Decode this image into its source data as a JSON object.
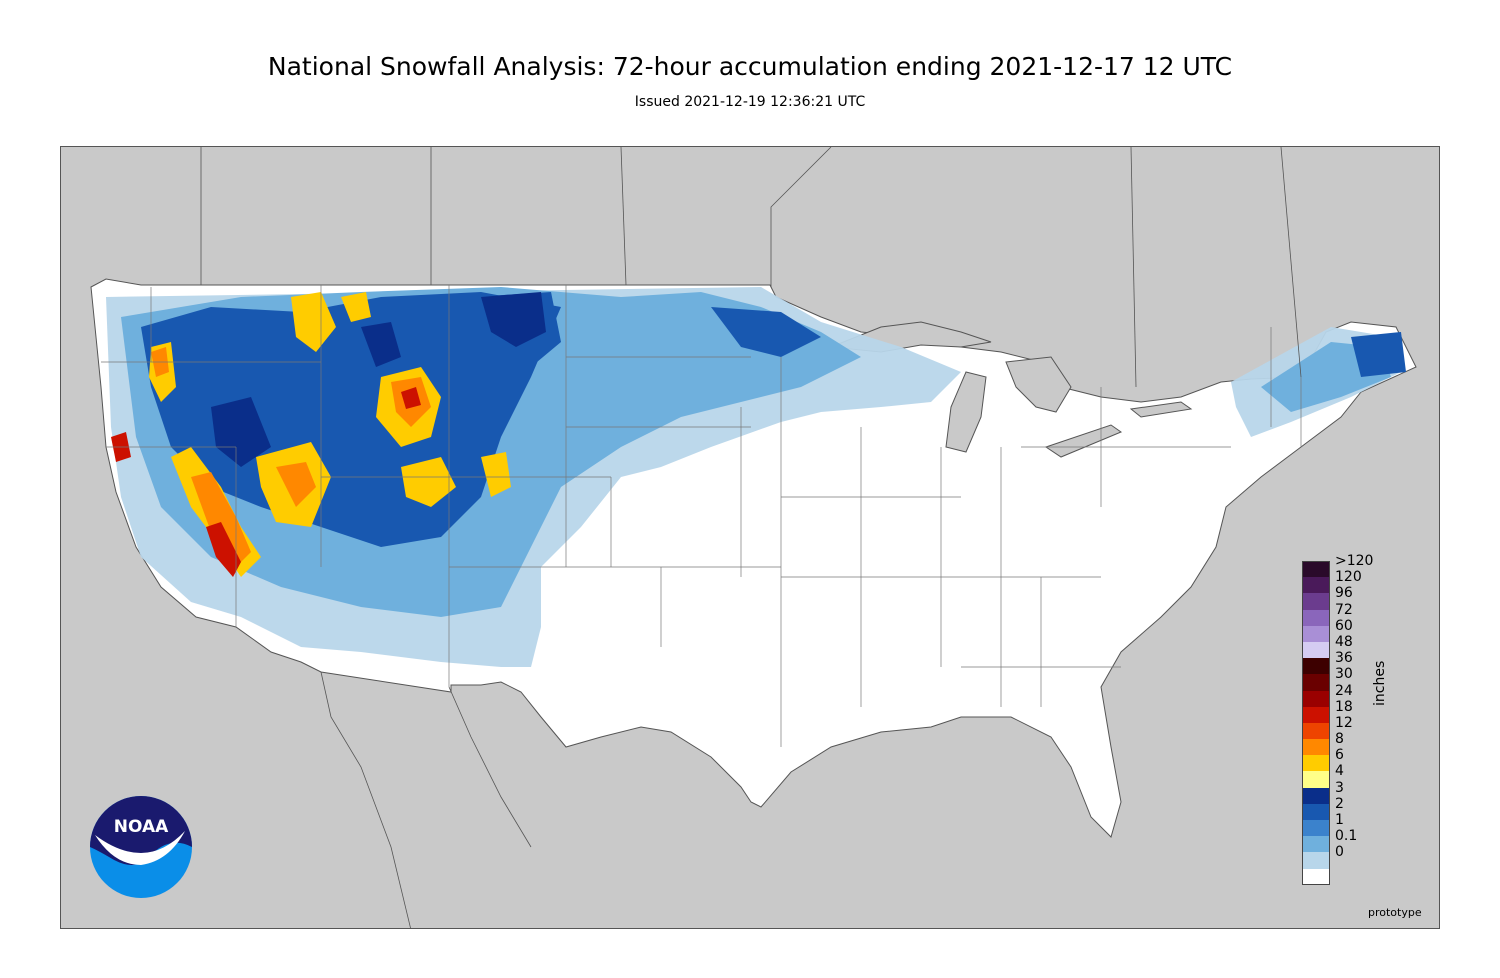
{
  "header": {
    "title": "National Snowfall Analysis: 72-hour accumulation ending 2021-12-17 12 UTC",
    "subtitle": "Issued 2021-12-19 12:36:21 UTC"
  },
  "legend": {
    "unit": "inches",
    "labels": [
      ">120",
      "120",
      "96",
      "72",
      "60",
      "48",
      "36",
      "30",
      "24",
      "18",
      "12",
      "8",
      "6",
      "4",
      "3",
      "2",
      "1",
      "0.1",
      "0"
    ],
    "colors": [
      "#2a0a2a",
      "#4a1a5a",
      "#6b3c8e",
      "#8a66bb",
      "#a98fd6",
      "#d5ccf2",
      "#3d0000",
      "#6a0000",
      "#9a0000",
      "#cc1100",
      "#ee4400",
      "#ff8800",
      "#ffcc00",
      "#ffff88",
      "#0a2e8a",
      "#1858b0",
      "#3b82cc",
      "#6fb0dd",
      "#b8d6ea",
      "#ffffff"
    ]
  },
  "map": {
    "land_color": "#ffffff",
    "background_color": "#c9c9c9",
    "snow_light": "#b8d6ea",
    "snow_mid": "#6fb0dd",
    "snow_heavy": "#1858b0",
    "snow_deep": "#0a2e8a",
    "snow_yellow": "#ffcc00",
    "snow_orange": "#ff8800",
    "snow_red": "#cc1100"
  },
  "footer": {
    "note": "prototype"
  },
  "logo": {
    "text": "NOAA"
  }
}
